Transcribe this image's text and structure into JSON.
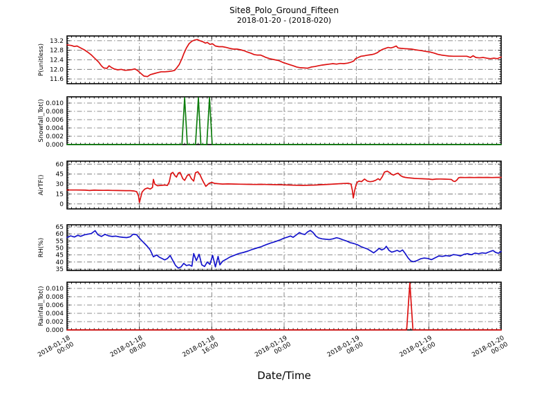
{
  "header": {
    "title": "Site8_Polo_Ground_Fifteen",
    "subtitle": "2018-01-20 - (2018-020)"
  },
  "colors": {
    "background": "#ffffff",
    "frame": "#000000",
    "grid": "#6b6b6b",
    "text": "#000000",
    "red_series": "#dd1111",
    "green_series": "#0e7d0e",
    "blue_series": "#1414cc"
  },
  "xaxis": {
    "label": "Date/Time",
    "xlim_hours": [
      0,
      48
    ],
    "tick_hours": [
      0,
      8,
      16,
      24,
      32,
      40,
      48
    ],
    "tick_labels": [
      [
        "2018-01-18",
        "00:00"
      ],
      [
        "2018-01-18",
        "08:00"
      ],
      [
        "2018-01-18",
        "16:00"
      ],
      [
        "2018-01-19",
        "00:00"
      ],
      [
        "2018-01-19",
        "08:00"
      ],
      [
        "2018-01-19",
        "16:00"
      ],
      [
        "2018-01-20",
        "00:00"
      ]
    ]
  },
  "chart_data": [
    {
      "type": "line",
      "ylabel": "P(unitless)",
      "color": "#dd1111",
      "ylim": [
        11.4,
        13.4
      ],
      "yticks": [
        11.6,
        12.0,
        12.4,
        12.8,
        13.2
      ],
      "ytick_labels": [
        "11.6",
        "12.0",
        "12.4",
        "12.8",
        "13.2"
      ],
      "yminor": 0.1,
      "x": [
        0,
        0.5,
        0.8,
        1.1,
        1.5,
        1.9,
        2.3,
        2.7,
        3.1,
        3.5,
        3.8,
        4.05,
        4.4,
        4.65,
        4.9,
        5.2,
        5.6,
        6,
        6.4,
        6.8,
        7.2,
        7.5,
        7.8,
        8.1,
        8.5,
        8.9,
        9.2,
        9.6,
        10,
        10.4,
        10.8,
        11.2,
        11.6,
        11.9,
        12.1,
        12.4,
        12.7,
        12.9,
        13.2,
        13.5,
        13.8,
        14.1,
        14.4,
        14.7,
        15,
        15.3,
        15.5,
        15.8,
        16.1,
        16.4,
        16.8,
        17.2,
        17.6,
        18,
        18.4,
        18.8,
        19.2,
        19.6,
        19.9,
        20.3,
        20.7,
        21,
        21.4,
        21.7,
        22,
        22.4,
        23,
        23.4,
        23.8,
        24.2,
        24.6,
        25,
        25.4,
        25.8,
        26.2,
        26.6,
        27,
        27.4,
        27.8,
        28.2,
        28.6,
        29,
        29.4,
        29.8,
        30.2,
        30.6,
        31,
        31.4,
        31.7,
        31.9,
        32.2,
        32.5,
        32.9,
        33.3,
        33.7,
        34,
        34.3,
        34.6,
        34.9,
        35.2,
        35.5,
        35.8,
        36.1,
        36.4,
        36.6,
        36.9,
        37.3,
        37.7,
        38.1,
        38.5,
        38.9,
        39.3,
        39.7,
        40.1,
        40.6,
        41,
        41.4,
        41.8,
        42.2,
        42.7,
        43.2,
        43.7,
        44.2,
        44.6,
        44.9,
        45.2,
        45.6,
        46,
        46.4,
        46.8,
        47.2,
        47.6,
        48
      ],
      "y": [
        13.03,
        13,
        12.96,
        12.98,
        12.9,
        12.82,
        12.72,
        12.6,
        12.45,
        12.3,
        12.15,
        12.06,
        12.04,
        12.15,
        12.08,
        12.02,
        11.98,
        12,
        11.96,
        11.97,
        11.99,
        12.02,
        11.95,
        11.85,
        11.72,
        11.7,
        11.78,
        11.82,
        11.86,
        11.9,
        11.9,
        11.91,
        11.93,
        11.96,
        12.05,
        12.2,
        12.45,
        12.65,
        12.9,
        13.08,
        13.18,
        13.23,
        13.25,
        13.2,
        13.16,
        13.1,
        13.13,
        13.05,
        13.07,
        12.98,
        12.95,
        12.95,
        12.92,
        12.88,
        12.85,
        12.85,
        12.82,
        12.78,
        12.73,
        12.68,
        12.62,
        12.6,
        12.6,
        12.55,
        12.5,
        12.45,
        12.4,
        12.37,
        12.3,
        12.25,
        12.2,
        12.15,
        12.1,
        12.07,
        12.06,
        12.05,
        12.1,
        12.12,
        12.15,
        12.18,
        12.2,
        12.22,
        12.24,
        12.22,
        12.25,
        12.24,
        12.26,
        12.3,
        12.35,
        12.45,
        12.5,
        12.55,
        12.57,
        12.6,
        12.62,
        12.65,
        12.7,
        12.78,
        12.84,
        12.88,
        12.92,
        12.9,
        12.93,
        12.98,
        12.9,
        12.88,
        12.87,
        12.86,
        12.85,
        12.82,
        12.8,
        12.78,
        12.75,
        12.73,
        12.68,
        12.63,
        12.6,
        12.58,
        12.56,
        12.55,
        12.55,
        12.55,
        12.55,
        12.5,
        12.57,
        12.5,
        12.48,
        12.5,
        12.47,
        12.45,
        12.47,
        12.45,
        12.52
      ]
    },
    {
      "type": "line",
      "ylabel": "Snowfall_Tot()",
      "color": "#0e7d0e",
      "ylim": [
        0,
        0.0115
      ],
      "yticks": [
        0.0,
        0.002,
        0.004,
        0.006,
        0.008,
        0.01
      ],
      "ytick_labels": [
        "0.000",
        "0.002",
        "0.004",
        "0.006",
        "0.008",
        "0.010"
      ],
      "yminor": 0.0005,
      "x": [
        0,
        12.7,
        13.0,
        13.3,
        14.2,
        14.52,
        14.8,
        15.45,
        15.75,
        16.05,
        48
      ],
      "y": [
        0,
        0,
        0.0113,
        0,
        0,
        0.0113,
        0,
        0,
        0.0113,
        0,
        0
      ]
    },
    {
      "type": "line",
      "ylabel": "AirTF()",
      "color": "#dd1111",
      "ylim": [
        -7.5,
        64.5
      ],
      "yticks": [
        0,
        15,
        30,
        45,
        60
      ],
      "ytick_labels": [
        "0",
        "15",
        "30",
        "45",
        "60"
      ],
      "yminor": 2.5,
      "x": [
        0,
        1,
        2,
        2.5,
        3,
        3.5,
        4,
        4.5,
        5,
        5.5,
        6,
        6.5,
        7,
        7.4,
        7.7,
        7.9,
        8,
        8.15,
        8.3,
        8.6,
        8.9,
        9.2,
        9.45,
        9.55,
        9.7,
        10,
        10.4,
        10.8,
        11.1,
        11.3,
        11.5,
        11.7,
        11.9,
        12.1,
        12.3,
        12.5,
        12.8,
        13,
        13.3,
        13.5,
        13.75,
        14,
        14.2,
        14.45,
        14.7,
        14.9,
        15.1,
        15.35,
        15.7,
        16,
        16.3,
        16.7,
        17.2,
        17.8,
        18.5,
        19.2,
        20,
        20.8,
        21.5,
        22.3,
        23,
        23.8,
        24.5,
        25.3,
        26,
        26.8,
        27.5,
        28.2,
        29,
        29.8,
        30.5,
        31.1,
        31.4,
        31.55,
        31.65,
        31.8,
        31.95,
        32.1,
        32.3,
        32.55,
        32.9,
        33.2,
        33.5,
        33.8,
        34.1,
        34.4,
        34.6,
        34.85,
        35.1,
        35.4,
        35.7,
        35.9,
        36.1,
        36.4,
        36.6,
        36.85,
        37.1,
        37.4,
        37.7,
        38,
        38.4,
        38.8,
        39.2,
        39.6,
        40,
        40.4,
        40.8,
        41.3,
        41.8,
        42.2,
        42.5,
        42.7,
        42.9,
        43.1,
        43.3,
        43.5,
        44,
        44.5,
        45,
        45.5,
        46,
        46.5,
        47,
        47.5,
        48
      ],
      "y": [
        21,
        21,
        20.8,
        20.3,
        20.8,
        20.6,
        20.5,
        20.6,
        20.4,
        20.3,
        20.2,
        20.1,
        20,
        19.5,
        18.5,
        12,
        2,
        10,
        18,
        22.5,
        24,
        22.5,
        25,
        37,
        30,
        27.5,
        28,
        28.5,
        28,
        33,
        46,
        47.5,
        43,
        40.5,
        46.5,
        47.5,
        38,
        35.5,
        43,
        44.5,
        38,
        34.5,
        47,
        48.5,
        44,
        38,
        32.5,
        26.5,
        31,
        32.5,
        31,
        30.5,
        30,
        30.2,
        30,
        29.8,
        29.5,
        29.3,
        29.5,
        29.2,
        29,
        28.8,
        28.5,
        28.2,
        28,
        28.2,
        28.5,
        29,
        29.5,
        30.2,
        30.8,
        31,
        30,
        20,
        9,
        20,
        28,
        33,
        34.5,
        33.5,
        37.5,
        34.5,
        33.5,
        34,
        35.5,
        38,
        36,
        41,
        48,
        49.5,
        47,
        44.5,
        43.5,
        45.5,
        46.5,
        43,
        41,
        40,
        39.5,
        39,
        38.5,
        38.2,
        38,
        37.8,
        37.5,
        36.8,
        37.5,
        37.6,
        37.4,
        37.2,
        36.8,
        34.5,
        33.8,
        36,
        39.5,
        40,
        39.8,
        40,
        39.8,
        40,
        39.9,
        40,
        39.8,
        40,
        40
      ]
    },
    {
      "type": "line",
      "ylabel": "RH(%)",
      "color": "#1414cc",
      "ylim": [
        34,
        66.5
      ],
      "yticks": [
        35,
        40,
        45,
        50,
        55,
        60,
        65
      ],
      "ytick_labels": [
        "35",
        "40",
        "45",
        "50",
        "55",
        "60",
        "65"
      ],
      "yminor": 1.25,
      "x": [
        0,
        0.4,
        0.8,
        1.2,
        1.5,
        1.9,
        2.3,
        2.7,
        3.1,
        3.4,
        3.8,
        4.2,
        4.6,
        5,
        5.4,
        5.8,
        6.2,
        6.6,
        7,
        7.3,
        7.7,
        8,
        8.3,
        8.6,
        8.9,
        9.2,
        9.55,
        9.9,
        10.2,
        10.5,
        10.8,
        11.1,
        11.4,
        11.7,
        12,
        12.3,
        12.6,
        12.9,
        13.2,
        13.5,
        13.8,
        14,
        14.3,
        14.6,
        14.9,
        15.2,
        15.5,
        15.8,
        16.1,
        16.4,
        16.7,
        16.9,
        17.2,
        17.6,
        18,
        18.5,
        19,
        19.5,
        20,
        20.5,
        21,
        21.5,
        22,
        22.5,
        23,
        23.5,
        24,
        24.4,
        24.7,
        25,
        25.4,
        25.7,
        26,
        26.3,
        26.6,
        26.9,
        27.2,
        27.5,
        27.8,
        28.2,
        28.6,
        29,
        29.4,
        29.8,
        30.1,
        30.5,
        30.9,
        31.3,
        31.7,
        32.1,
        32.5,
        32.9,
        33.2,
        33.6,
        33.9,
        34.2,
        34.5,
        34.8,
        35.1,
        35.3,
        35.6,
        35.9,
        36.2,
        36.5,
        36.8,
        37.1,
        37.4,
        37.7,
        38,
        38.3,
        38.7,
        39.1,
        39.5,
        39.9,
        40.3,
        40.7,
        41.1,
        41.5,
        41.9,
        42.3,
        42.7,
        43.1,
        43.5,
        43.9,
        44.3,
        44.7,
        45.1,
        45.5,
        45.9,
        46.3,
        46.7,
        47.1,
        47.4,
        47.7,
        48
      ],
      "y": [
        57.5,
        58.6,
        57.8,
        59,
        58.3,
        59.3,
        59.8,
        60.3,
        62.3,
        59.5,
        58.2,
        59.7,
        58.6,
        58.2,
        58.4,
        57.9,
        57.6,
        57.4,
        58,
        59.8,
        59.4,
        57,
        55,
        53,
        51,
        48.5,
        43.7,
        45,
        43.5,
        42.5,
        41.5,
        42.5,
        44.6,
        41,
        37.5,
        35.7,
        36.5,
        39,
        37.5,
        38,
        37,
        46,
        41,
        45.5,
        38,
        36.8,
        40,
        38.3,
        44.8,
        36.5,
        44,
        38,
        40.5,
        42,
        43.5,
        44.8,
        46,
        46.8,
        47.8,
        49,
        50,
        51,
        52.3,
        53.5,
        54.5,
        55.6,
        57,
        57.8,
        58.5,
        57.6,
        59.5,
        61,
        60,
        59.6,
        61.5,
        62.5,
        61,
        58.5,
        57.2,
        56.5,
        56.2,
        56,
        56.5,
        57.3,
        56.8,
        55.8,
        55,
        53.8,
        53.2,
        52.3,
        51,
        50,
        49.3,
        47.8,
        46.5,
        48,
        49.7,
        48.6,
        49.5,
        51.2,
        48.3,
        47,
        47.6,
        48.3,
        47.4,
        48.6,
        46,
        43,
        40.8,
        40.2,
        41,
        42.3,
        42.8,
        42.5,
        41.7,
        43,
        44.3,
        44,
        44.6,
        44.2,
        45.3,
        45,
        44.3,
        45.5,
        45.9,
        45.2,
        46.3,
        45.9,
        46.5,
        46.2,
        47.3,
        48.2,
        46.8,
        46.2,
        47.6
      ]
    },
    {
      "type": "line",
      "ylabel": "Rainfall_Tot()",
      "color": "#dd1111",
      "ylim": [
        0,
        0.0115
      ],
      "yticks": [
        0.0,
        0.002,
        0.004,
        0.006,
        0.008,
        0.01
      ],
      "ytick_labels": [
        "0.000",
        "0.002",
        "0.004",
        "0.006",
        "0.008",
        "0.010"
      ],
      "yminor": 0.0005,
      "x": [
        0,
        37.55,
        37.9,
        38.25,
        48
      ],
      "y": [
        0,
        0,
        0.0113,
        0,
        0
      ]
    }
  ]
}
